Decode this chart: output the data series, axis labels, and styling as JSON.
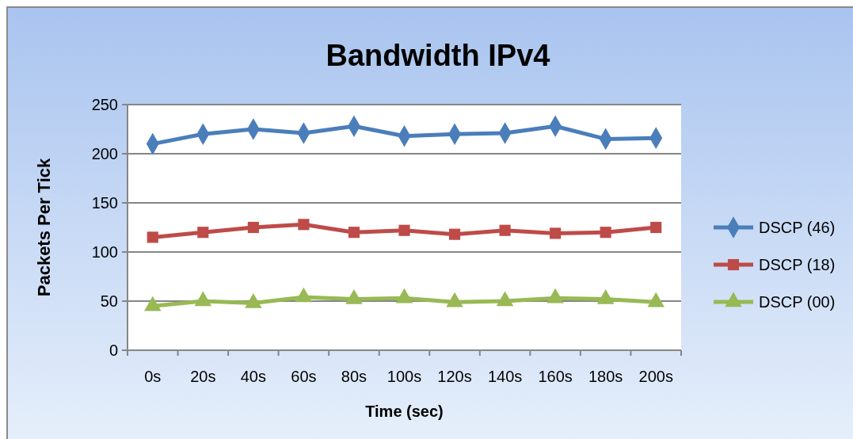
{
  "chart_data": {
    "type": "line",
    "title": "Bandwidth IPv4",
    "xlabel": "Time (sec)",
    "ylabel": "Packets Per Tick",
    "categories": [
      "0s",
      "20s",
      "40s",
      "60s",
      "80s",
      "100s",
      "120s",
      "140s",
      "160s",
      "180s",
      "200s"
    ],
    "series": [
      {
        "name": "DSCP (46)",
        "color": "#4a7ebb",
        "marker": "diamond",
        "values": [
          210,
          220,
          225,
          221,
          228,
          218,
          220,
          221,
          228,
          215,
          216
        ]
      },
      {
        "name": "DSCP (18)",
        "color": "#be4b48",
        "marker": "square",
        "values": [
          115,
          120,
          125,
          128,
          120,
          122,
          118,
          122,
          119,
          120,
          125
        ]
      },
      {
        "name": "DSCP (00)",
        "color": "#98b954",
        "marker": "triangle",
        "values": [
          45,
          50,
          48,
          54,
          52,
          53,
          49,
          50,
          53,
          52,
          49
        ]
      }
    ],
    "ylim": [
      0,
      250
    ],
    "yticks": [
      0,
      50,
      100,
      150,
      200,
      250
    ],
    "grid": "y",
    "legend": "right"
  }
}
